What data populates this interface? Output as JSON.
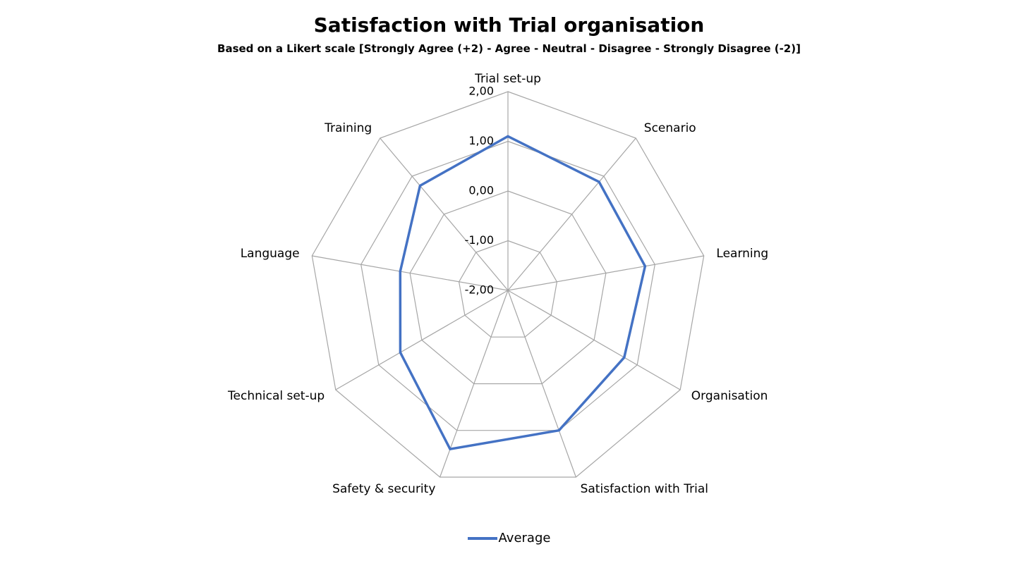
{
  "chart_data": {
    "type": "radar",
    "title": "Satisfaction with Trial organisation",
    "subtitle": "Based on a Likert scale [Strongly Agree (+2) - Agree - Neutral - Disagree - Strongly Disagree (-2)]",
    "categories": [
      "Trial set-up",
      "Scenario",
      "Learning",
      "Organisation",
      "Satisfaction with Trial",
      "Safety & security",
      "Technical set-up",
      "Language",
      "Training"
    ],
    "series": [
      {
        "name": "Average",
        "color": "#4472c4",
        "values": [
          1.1,
          0.85,
          0.8,
          0.7,
          1.0,
          1.4,
          0.5,
          0.2,
          0.75
        ]
      }
    ],
    "r_ticks": [
      "-2,00",
      "-1,00",
      "0,00",
      "1,00",
      "2,00"
    ],
    "r_tick_values": [
      -2,
      -1,
      0,
      1,
      2
    ],
    "rlim": [
      -2,
      2
    ],
    "grid": true,
    "grid_color": "#a6a6a6",
    "legend_position": "bottom"
  }
}
